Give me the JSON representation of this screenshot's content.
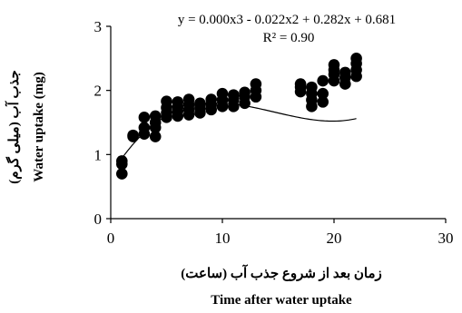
{
  "chart_data": {
    "type": "scatter",
    "xlabel_fa": "زمان  بعد از شروع جذب آب (ساعت)",
    "xlabel_en": "Time after water uptake",
    "ylabel_fa": "جذب آب (میلی گرم)",
    "ylabel_en": "Water uptake (mg)",
    "equation": "y = 0.000x3 - 0.022x2 + 0.282x + 0.681",
    "r2": "R² = 0.90",
    "xlim": [
      0,
      30
    ],
    "ylim": [
      0,
      3
    ],
    "xticks": [
      "0",
      "10",
      "20",
      "30"
    ],
    "yticks": [
      "0",
      "1",
      "2",
      "3"
    ],
    "grid": false,
    "legend": "none",
    "marker_color": "#000000",
    "trendline": {
      "type": "polynomial",
      "degree": 3,
      "coefficients": [
        0.0005,
        -0.022,
        0.282,
        0.681
      ],
      "x_range": [
        1,
        22
      ]
    },
    "points": [
      {
        "x": 1,
        "y": 0.7
      },
      {
        "x": 1,
        "y": 0.85
      },
      {
        "x": 1,
        "y": 0.9
      },
      {
        "x": 2,
        "y": 1.28
      },
      {
        "x": 2,
        "y": 1.3
      },
      {
        "x": 3,
        "y": 1.32
      },
      {
        "x": 3,
        "y": 1.42
      },
      {
        "x": 3,
        "y": 1.58
      },
      {
        "x": 4,
        "y": 1.28
      },
      {
        "x": 4,
        "y": 1.42
      },
      {
        "x": 4,
        "y": 1.5
      },
      {
        "x": 4,
        "y": 1.6
      },
      {
        "x": 5,
        "y": 1.58
      },
      {
        "x": 5,
        "y": 1.65
      },
      {
        "x": 5,
        "y": 1.73
      },
      {
        "x": 5,
        "y": 1.83
      },
      {
        "x": 6,
        "y": 1.6
      },
      {
        "x": 6,
        "y": 1.68
      },
      {
        "x": 6,
        "y": 1.75
      },
      {
        "x": 6,
        "y": 1.82
      },
      {
        "x": 7,
        "y": 1.62
      },
      {
        "x": 7,
        "y": 1.7
      },
      {
        "x": 7,
        "y": 1.78
      },
      {
        "x": 7,
        "y": 1.86
      },
      {
        "x": 8,
        "y": 1.65
      },
      {
        "x": 8,
        "y": 1.73
      },
      {
        "x": 8,
        "y": 1.8
      },
      {
        "x": 9,
        "y": 1.7
      },
      {
        "x": 9,
        "y": 1.78
      },
      {
        "x": 9,
        "y": 1.86
      },
      {
        "x": 10,
        "y": 1.75
      },
      {
        "x": 10,
        "y": 1.85
      },
      {
        "x": 10,
        "y": 1.95
      },
      {
        "x": 11,
        "y": 1.75
      },
      {
        "x": 11,
        "y": 1.85
      },
      {
        "x": 11,
        "y": 1.93
      },
      {
        "x": 12,
        "y": 1.8
      },
      {
        "x": 12,
        "y": 1.9
      },
      {
        "x": 12,
        "y": 1.97
      },
      {
        "x": 13,
        "y": 1.9
      },
      {
        "x": 13,
        "y": 2.0
      },
      {
        "x": 13,
        "y": 2.1
      },
      {
        "x": 17,
        "y": 1.98
      },
      {
        "x": 17,
        "y": 2.05
      },
      {
        "x": 17,
        "y": 2.1
      },
      {
        "x": 18,
        "y": 1.75
      },
      {
        "x": 18,
        "y": 1.85
      },
      {
        "x": 18,
        "y": 1.95
      },
      {
        "x": 18,
        "y": 2.05
      },
      {
        "x": 19,
        "y": 1.82
      },
      {
        "x": 19,
        "y": 1.95
      },
      {
        "x": 19,
        "y": 2.15
      },
      {
        "x": 20,
        "y": 2.15
      },
      {
        "x": 20,
        "y": 2.25
      },
      {
        "x": 20,
        "y": 2.32
      },
      {
        "x": 20,
        "y": 2.4
      },
      {
        "x": 21,
        "y": 2.1
      },
      {
        "x": 21,
        "y": 2.2
      },
      {
        "x": 21,
        "y": 2.28
      },
      {
        "x": 22,
        "y": 2.22
      },
      {
        "x": 22,
        "y": 2.32
      },
      {
        "x": 22,
        "y": 2.42
      },
      {
        "x": 22,
        "y": 2.5
      }
    ]
  }
}
